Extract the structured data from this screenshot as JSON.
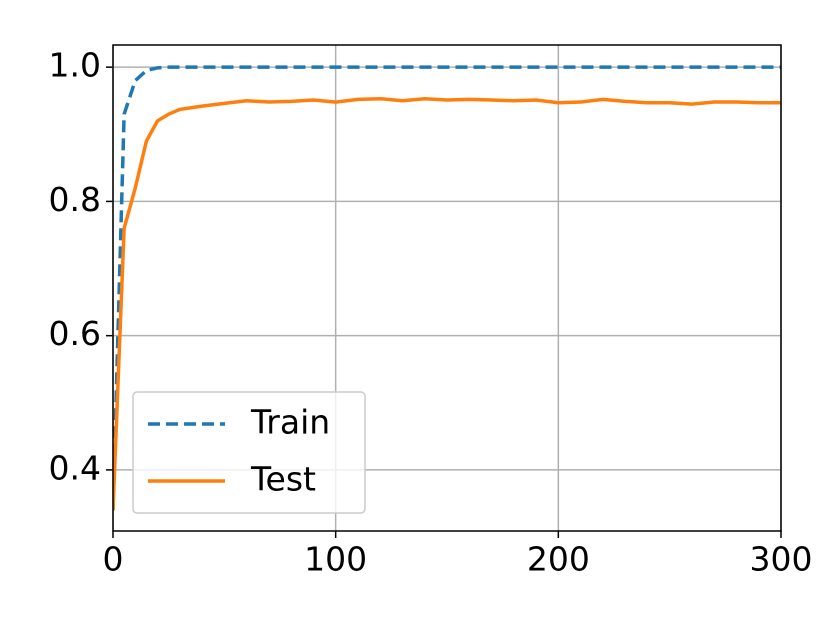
{
  "chart_data": {
    "type": "line",
    "x": [
      0,
      5,
      10,
      15,
      20,
      25,
      30,
      40,
      50,
      60,
      70,
      80,
      90,
      100,
      110,
      120,
      130,
      140,
      150,
      160,
      170,
      180,
      190,
      200,
      210,
      220,
      230,
      240,
      250,
      260,
      270,
      280,
      290,
      300
    ],
    "series": [
      {
        "name": "Train",
        "color": "#1f77b4",
        "linestyle": "dashed",
        "values": [
          0.34,
          0.93,
          0.98,
          0.995,
          0.999,
          1,
          1,
          1,
          1,
          1,
          1,
          1,
          1,
          1,
          1,
          1,
          1,
          1,
          1,
          1,
          1,
          1,
          1,
          1,
          1,
          1,
          1,
          1,
          1,
          1,
          1,
          1,
          1,
          1
        ]
      },
      {
        "name": "Test",
        "color": "#ff7f0e",
        "linestyle": "solid",
        "values": [
          0.34,
          0.76,
          0.82,
          0.89,
          0.92,
          0.93,
          0.937,
          0.942,
          0.946,
          0.95,
          0.948,
          0.949,
          0.951,
          0.948,
          0.952,
          0.953,
          0.95,
          0.953,
          0.951,
          0.952,
          0.951,
          0.95,
          0.951,
          0.947,
          0.948,
          0.952,
          0.949,
          0.947,
          0.947,
          0.945,
          0.948,
          0.948,
          0.947,
          0.947
        ]
      }
    ],
    "xlim": [
      0,
      300
    ],
    "xticks": [
      0,
      100,
      200,
      300
    ],
    "ylim": [
      0.309,
      1.033
    ],
    "yticks": [
      0.4,
      0.6,
      0.8,
      {
        "value": 1,
        "label": "1.0"
      }
    ],
    "grid": true,
    "legend": "lower left"
  }
}
